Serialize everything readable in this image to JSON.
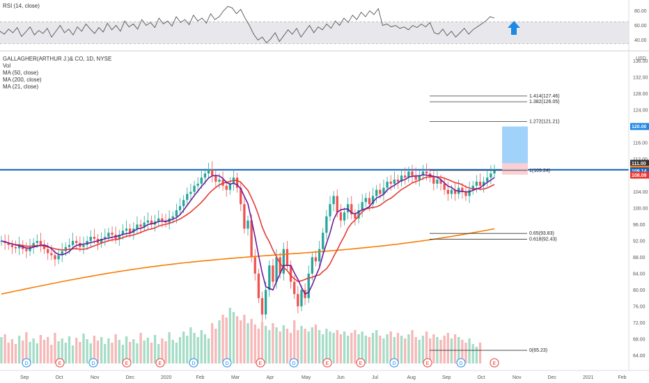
{
  "chart_data": [
    {
      "type": "line",
      "title": "RSI (14, close)",
      "ylim": [
        30,
        90
      ],
      "ticks": [
        {
          "v": 80,
          "label": "80.00"
        },
        {
          "v": 60,
          "label": "60.00"
        },
        {
          "v": 40,
          "label": "40.00"
        }
      ],
      "band": [
        35,
        65
      ],
      "arrow": "up",
      "arrow_color": "#1e88e5",
      "values": [
        52,
        48,
        55,
        50,
        57,
        45,
        51,
        58,
        47,
        53,
        49,
        56,
        44,
        52,
        60,
        50,
        55,
        47,
        58,
        52,
        62,
        55,
        49,
        57,
        51,
        63,
        54,
        60,
        52,
        66,
        58,
        62,
        55,
        68,
        60,
        64,
        57,
        70,
        62,
        66,
        59,
        72,
        64,
        68,
        61,
        74,
        66,
        70,
        63,
        76,
        68,
        72,
        80,
        86,
        84,
        76,
        82,
        70,
        60,
        48,
        40,
        44,
        36,
        42,
        50,
        38,
        46,
        54,
        48,
        56,
        44,
        52,
        60,
        50,
        58,
        54,
        62,
        56,
        66,
        60,
        70,
        64,
        74,
        68,
        78,
        72,
        80,
        75,
        83,
        60,
        62,
        58,
        60,
        56,
        58,
        54,
        60,
        57,
        62,
        58,
        64,
        50,
        48,
        55,
        46,
        52,
        44,
        50,
        56,
        48,
        54,
        58,
        62,
        66,
        72,
        70
      ],
      "color": "#555555"
    },
    {
      "type": "candlestick",
      "title": "GALLAGHER(ARTHUR J.)& CO, 1D, NYSE",
      "legend": [
        "Vol",
        "MA (50, close)",
        "MA (200, close)",
        "MA (21, close)"
      ],
      "currency": "USD",
      "ylim": [
        62,
        138
      ],
      "price_ticks": [
        "136.00",
        "132.00",
        "128.00",
        "124.00",
        "120.00",
        "116.00",
        "112.00",
        "108.00",
        "104.00",
        "100.00",
        "96.00",
        "92.00",
        "88.00",
        "84.00",
        "80.00",
        "76.00",
        "72.00",
        "68.00",
        "64.00"
      ],
      "x_labels": [
        "Sep",
        "Oct",
        "Nov",
        "Dec",
        "2020",
        "Feb",
        "Mar",
        "Apr",
        "May",
        "Jun",
        "Jul",
        "Aug",
        "Sep",
        "Oct",
        "Nov",
        "Dec",
        "2021",
        "Feb"
      ],
      "resistance": 109.4,
      "resistance_color": "#1565c0",
      "target_box": {
        "from": 111.0,
        "to": 120.0,
        "stop_from": 108.2,
        "stop_to": 111.0
      },
      "fib_levels": [
        {
          "label": "1.414(127.46)",
          "price": 127.46
        },
        {
          "label": "1.382(126.05)",
          "price": 126.05
        },
        {
          "label": "1.272(121.21)",
          "price": 121.21
        },
        {
          "label": "1(109.24)",
          "price": 109.24
        },
        {
          "label": "0.65(93.83)",
          "price": 93.83
        },
        {
          "label": "0.618(92.43)",
          "price": 92.43
        },
        {
          "label": "0(65.23)",
          "price": 65.23
        }
      ],
      "badges": [
        {
          "label": "120.00",
          "price": 120.0,
          "color": "#1e88e5"
        },
        {
          "label": "111.00",
          "price": 111.0,
          "color": "#333333"
        },
        {
          "label": "109.55",
          "price": 109.55,
          "color": "#ff7f0e"
        },
        {
          "label": "109.14",
          "price": 109.14,
          "color": "#1565c0"
        },
        {
          "label": "108.09",
          "price": 108.09,
          "color": "#e53935"
        }
      ],
      "events": [
        "D",
        "E",
        "D",
        "E",
        "E",
        "D",
        "D",
        "E",
        "D",
        "E",
        "E",
        "D",
        "E",
        "D",
        "E"
      ],
      "close_series": [
        92.0,
        91.5,
        91.0,
        90.5,
        90.2,
        91.0,
        90.0,
        89.5,
        90.5,
        91.5,
        92.0,
        91.0,
        90.0,
        89.0,
        88.5,
        87.5,
        88.5,
        89.5,
        90.5,
        91.0,
        92.0,
        91.5,
        90.5,
        91.0,
        92.0,
        93.0,
        92.5,
        91.5,
        92.5,
        93.0,
        94.0,
        93.5,
        92.5,
        93.5,
        94.5,
        95.0,
        94.0,
        95.0,
        96.0,
        95.5,
        96.5,
        97.0,
        96.0,
        96.8,
        97.5,
        97.0,
        96.5,
        97.5,
        98.0,
        99.5,
        100.5,
        102.0,
        103.5,
        104.0,
        105.5,
        106.0,
        107.5,
        108.5,
        109.5,
        108.0,
        106.5,
        107.0,
        105.5,
        104.5,
        106.0,
        107.5,
        105.0,
        101.0,
        95.0,
        97.0,
        88.0,
        84.0,
        78.0,
        74.0,
        80.0,
        86.0,
        82.0,
        88.0,
        84.0,
        90.0,
        86.0,
        82.0,
        79.0,
        76.0,
        80.0,
        78.0,
        84.0,
        88.0,
        87.0,
        90.0,
        94.0,
        98.0,
        101.0,
        103.0,
        99.0,
        97.0,
        99.0,
        101.0,
        98.5,
        97.5,
        99.5,
        101.5,
        102.5,
        101.0,
        103.0,
        104.5,
        103.5,
        105.0,
        106.5,
        106.0,
        107.0,
        106.5,
        108.0,
        107.5,
        109.0,
        108.0,
        107.0,
        108.0,
        109.0,
        108.5,
        107.5,
        106.0,
        107.0,
        106.0,
        104.5,
        103.5,
        104.5,
        103.5,
        105.0,
        104.0,
        103.0,
        104.5,
        105.5,
        106.5,
        105.5,
        106.5,
        107.5,
        108.5,
        109.5
      ],
      "volume": [
        38,
        42,
        30,
        35,
        28,
        40,
        33,
        45,
        31,
        36,
        29,
        41,
        34,
        38,
        27,
        44,
        32,
        36,
        30,
        39,
        26,
        37,
        31,
        43,
        35,
        29,
        40,
        33,
        38,
        28,
        36,
        30,
        42,
        34,
        27,
        39,
        31,
        35,
        29,
        44,
        33,
        37,
        30,
        41,
        28,
        36,
        32,
        45,
        34,
        30,
        38,
        46,
        40,
        52,
        44,
        38,
        48,
        42,
        36,
        58,
        50,
        62,
        70,
        66,
        80,
        74,
        68,
        62,
        70,
        58,
        64,
        56,
        50,
        60,
        54,
        48,
        58,
        52,
        46,
        55,
        50,
        44,
        62,
        48,
        54,
        50,
        46,
        52,
        56,
        48,
        42,
        50,
        46,
        44,
        48,
        42,
        46,
        40,
        44,
        48,
        42,
        46,
        40,
        38,
        44,
        48,
        40,
        36,
        42,
        46,
        38,
        44,
        40,
        36,
        42,
        48,
        38,
        34,
        40,
        46,
        36,
        42,
        38,
        34,
        40,
        44,
        36,
        42,
        38,
        34,
        30,
        36,
        28,
        24,
        30
      ]
    }
  ]
}
